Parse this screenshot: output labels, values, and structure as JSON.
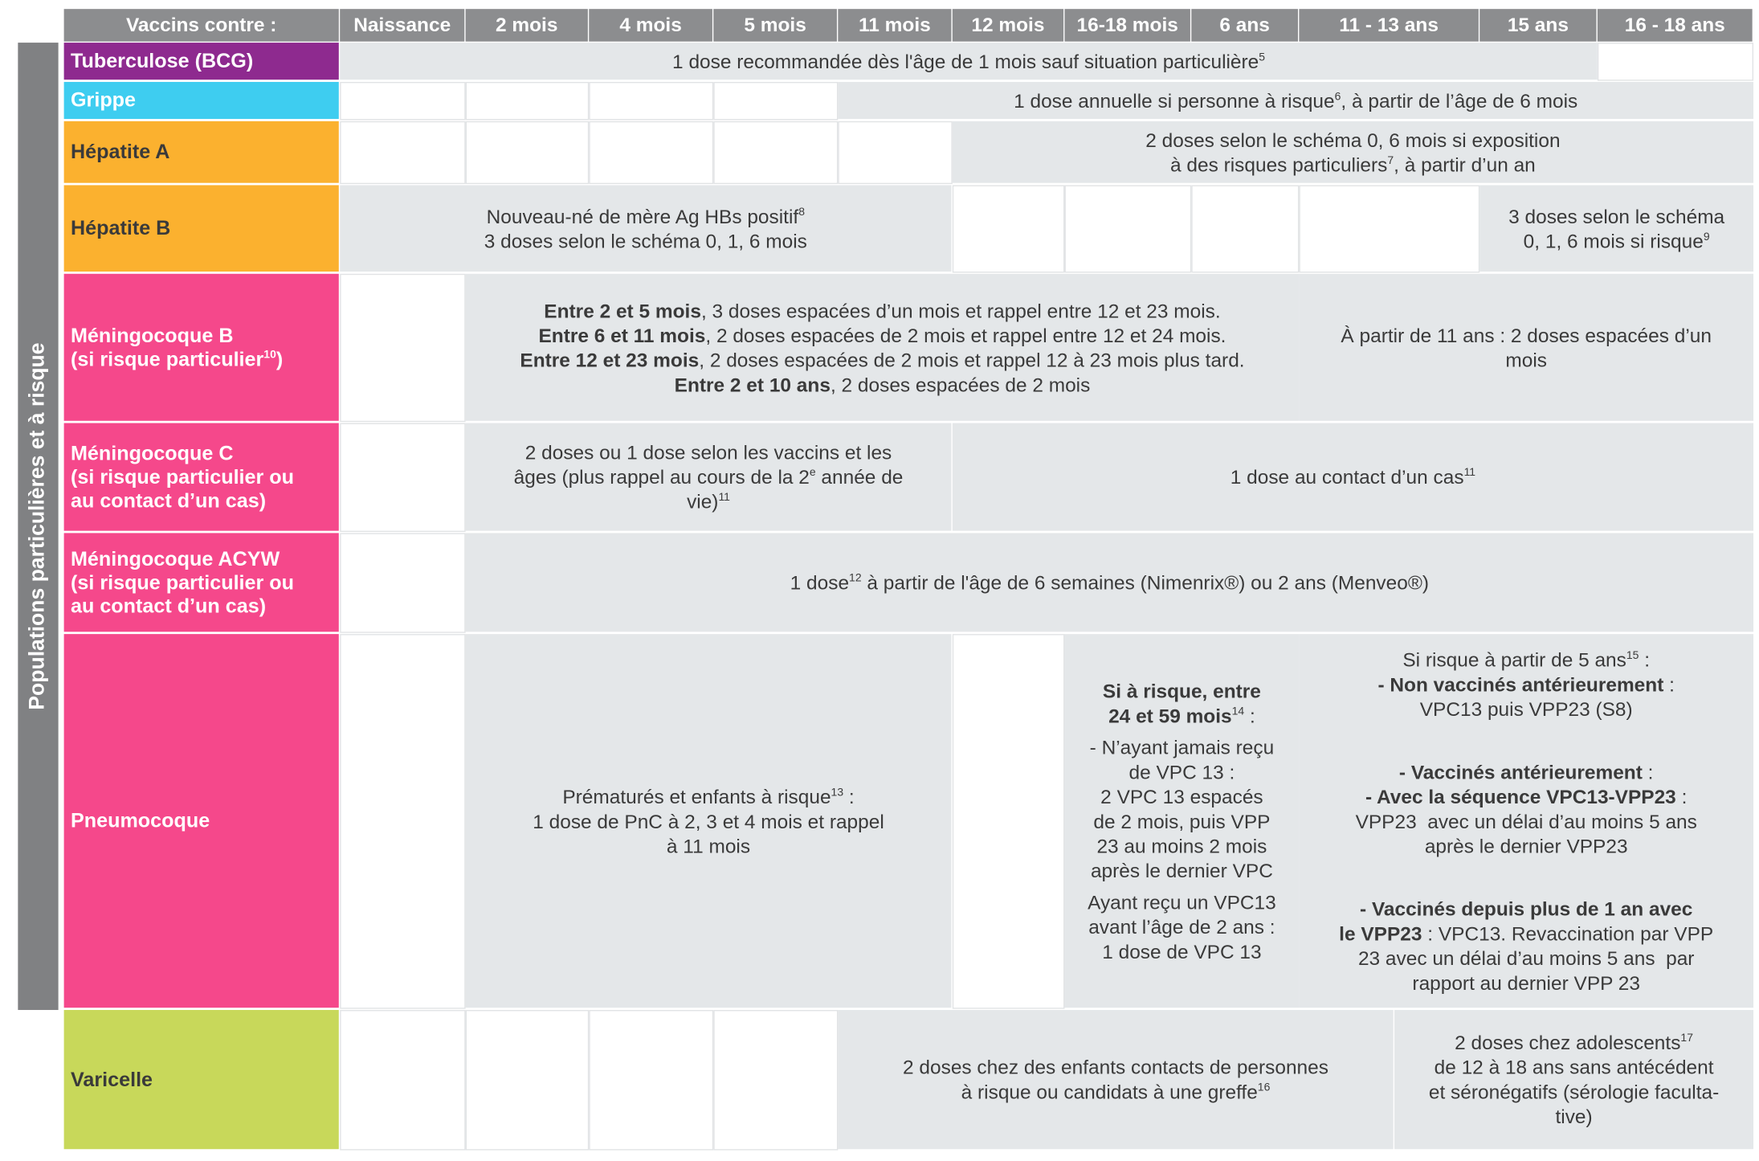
{
  "side_label": "Populations particulières et à risque",
  "header": {
    "title": "Vaccins contre :",
    "columns": [
      "Naissance",
      "2 mois",
      "4 mois",
      "5 mois",
      "11 mois",
      "12 mois",
      "16-18 mois",
      "6 ans",
      "11 - 13 ans",
      "15 ans",
      "16 - 18 ans"
    ]
  },
  "rows": [
    {
      "name": [
        [
          [
            {
              "text": "Tuberculose (BCG)"
            }
          ]
        ]
      ],
      "cells": [
        [
          [
            [
              {
                "text": "1 dose recommandée dès l'âge de 1 mois sauf situation particulière"
              },
              {
                "text": "5",
                "style": "sup"
              }
            ]
          ]
        ]
      ]
    },
    {
      "name": [
        [
          [
            {
              "text": "Grippe"
            }
          ]
        ]
      ],
      "cells": [
        [
          [
            [
              {
                "text": "1 dose annuelle si personne à risque"
              },
              {
                "text": "6",
                "style": "sup"
              },
              {
                "text": ", à partir de l’âge de 6 mois"
              }
            ]
          ]
        ]
      ]
    },
    {
      "name": [
        [
          [
            {
              "text": "Hépatite A"
            }
          ]
        ]
      ],
      "cells": [
        [
          [
            [
              {
                "text": "2 doses selon le schéma 0, 6 mois si exposition"
              }
            ],
            [
              {
                "text": "à des risques particuliers"
              },
              {
                "text": "7",
                "style": "sup"
              },
              {
                "text": ", à partir d’un an"
              }
            ]
          ]
        ]
      ]
    },
    {
      "name": [
        [
          [
            {
              "text": "Hépatite B"
            }
          ]
        ]
      ],
      "cells": [
        [
          [
            [
              {
                "text": "Nouveau-né de mère Ag HBs positif"
              },
              {
                "text": "8",
                "style": "sup"
              }
            ],
            [
              {
                "text": "3 doses selon le schéma 0, 1, 6 mois"
              }
            ]
          ]
        ],
        [
          [
            [
              {
                "text": "3 doses selon le schéma"
              }
            ],
            [
              {
                "text": "0, 1, 6 mois si risque"
              },
              {
                "text": "9",
                "style": "sup"
              }
            ]
          ]
        ]
      ]
    },
    {
      "name": [
        [
          [
            {
              "text": "Méningocoque B"
            }
          ],
          [
            {
              "text": "(si risque particulier"
            },
            {
              "text": "10",
              "style": "sup"
            },
            {
              "text": ")"
            }
          ]
        ]
      ],
      "cells": [
        [
          [
            [
              {
                "text": "Entre 2 et 5 mois",
                "style": "bold"
              },
              {
                "text": ", 3 doses espacées d’un mois et rappel entre 12 et 23 mois."
              }
            ],
            [
              {
                "text": "Entre 6 et 11 mois",
                "style": "bold"
              },
              {
                "text": ", 2 doses espacées de 2 mois et rappel entre 12 et 24 mois."
              }
            ],
            [
              {
                "text": "Entre 12 et 23 mois",
                "style": "bold"
              },
              {
                "text": ", 2 doses espacées de 2 mois et rappel 12 à 23 mois plus tard."
              }
            ],
            [
              {
                "text": "Entre 2 et 10 ans",
                "style": "bold"
              },
              {
                "text": ", 2 doses espacées de 2 mois"
              }
            ]
          ]
        ],
        [
          [
            [
              {
                "text": "À partir de 11 ans : 2 doses espacées d’un"
              }
            ],
            [
              {
                "text": "mois"
              }
            ]
          ]
        ]
      ]
    },
    {
      "name": [
        [
          [
            {
              "text": "Méningocoque C"
            }
          ],
          [
            {
              "text": "(si risque particulier ou"
            }
          ],
          [
            {
              "text": "au contact d’un cas)"
            }
          ]
        ]
      ],
      "cells": [
        [
          [
            [
              {
                "text": "2 doses ou 1 dose selon les vaccins et les"
              }
            ],
            [
              {
                "text": "âges (plus rappel au cours de la 2"
              },
              {
                "text": "e",
                "style": "sup"
              },
              {
                "text": " année de"
              }
            ],
            [
              {
                "text": "vie)"
              },
              {
                "text": "11",
                "style": "sup"
              }
            ]
          ]
        ],
        [
          [
            [
              {
                "text": "1 dose au contact d’un cas"
              },
              {
                "text": "11",
                "style": "sup"
              }
            ]
          ]
        ]
      ]
    },
    {
      "name": [
        [
          [
            {
              "text": "Méningocoque ACYW"
            }
          ],
          [
            {
              "text": "(si risque particulier ou"
            }
          ],
          [
            {
              "text": "au contact d’un cas)"
            }
          ]
        ]
      ],
      "cells": [
        [
          [
            [
              {
                "text": "1 dose"
              },
              {
                "text": "12",
                "style": "sup"
              },
              {
                "text": " à partir de l'âge de 6 semaines (Nimenrix®) ou 2 ans (Menveo®)"
              }
            ]
          ]
        ]
      ]
    },
    {
      "name": [
        [
          [
            {
              "text": "Pneumocoque"
            }
          ]
        ]
      ],
      "cells": [
        [
          [
            [
              {
                "text": "Prématurés et enfants à risque"
              },
              {
                "text": "13",
                "style": "sup"
              },
              {
                "text": " :"
              }
            ],
            [
              {
                "text": "1 dose de PnC à 2, 3 et 4 mois et rappel"
              }
            ],
            [
              {
                "text": "à 11 mois"
              }
            ]
          ]
        ],
        [
          [
            [
              {
                "text": "Si à risque, entre",
                "style": "bold"
              }
            ],
            [
              {
                "text": "24 et 59 mois",
                "style": "bold"
              },
              {
                "text": "14",
                "style": "sup"
              },
              {
                "text": " :"
              }
            ]
          ],
          [
            [
              {
                "text": "- N’ayant jamais reçu"
              }
            ],
            [
              {
                "text": "de VPC 13 :"
              }
            ],
            [
              {
                "text": "2 VPC 13 espacés"
              }
            ],
            [
              {
                "text": "de 2 mois, puis VPP"
              }
            ],
            [
              {
                "text": "23 au moins 2 mois"
              }
            ],
            [
              {
                "text": "après le dernier VPC"
              }
            ]
          ],
          [
            [
              {
                "text": "Ayant reçu un VPC13"
              }
            ],
            [
              {
                "text": "avant l’âge de 2 ans :"
              }
            ],
            [
              {
                "text": "1 dose de VPC 13"
              }
            ]
          ]
        ],
        [
          [
            [
              {
                "text": "Si risque à partir de 5 ans"
              },
              {
                "text": "15",
                "style": "sup"
              },
              {
                "text": " :"
              }
            ],
            [
              {
                "text": "- Non vaccinés antérieurement",
                "style": "bold"
              },
              {
                "text": " :"
              }
            ],
            [
              {
                "text": "VPC13 puis VPP23 (S8)"
              }
            ]
          ],
          [
            [
              {
                "text": "- Vaccinés antérieurement",
                "style": "bold"
              },
              {
                "text": " :"
              }
            ],
            [
              {
                "text": "- Avec la séquence VPC13-VPP23",
                "style": "bold"
              },
              {
                "text": " :"
              }
            ],
            [
              {
                "text": "VPP23  avec un délai d’au moins 5 ans"
              }
            ],
            [
              {
                "text": "après le dernier VPP23"
              }
            ]
          ],
          [
            [
              {
                "text": "- Vaccinés depuis plus de 1 an avec",
                "style": "bold"
              }
            ],
            [
              {
                "text": "le VPP23",
                "style": "bold"
              },
              {
                "text": " : VPC13. Revaccination par VPP"
              }
            ],
            [
              {
                "text": "23 avec un délai d’au moins 5 ans  par"
              }
            ],
            [
              {
                "text": "rapport au dernier VPP 23"
              }
            ]
          ]
        ]
      ]
    },
    {
      "name": [
        [
          [
            {
              "text": "Varicelle"
            }
          ]
        ]
      ],
      "cells": [
        [
          [
            [
              {
                "text": "2 doses chez des enfants contacts de personnes"
              }
            ],
            [
              {
                "text": "à risque ou candidats à une greffe"
              },
              {
                "text": "16",
                "style": "sup"
              }
            ]
          ]
        ],
        [
          [
            [
              {
                "text": "2 doses chez adolescents"
              },
              {
                "text": "17",
                "style": "sup"
              }
            ],
            [
              {
                "text": "de 12 à 18 ans sans antécédent"
              }
            ],
            [
              {
                "text": "et séronégatifs (sérologie faculta-"
              }
            ],
            [
              {
                "text": "tive)"
              }
            ]
          ]
        ]
      ]
    }
  ]
}
